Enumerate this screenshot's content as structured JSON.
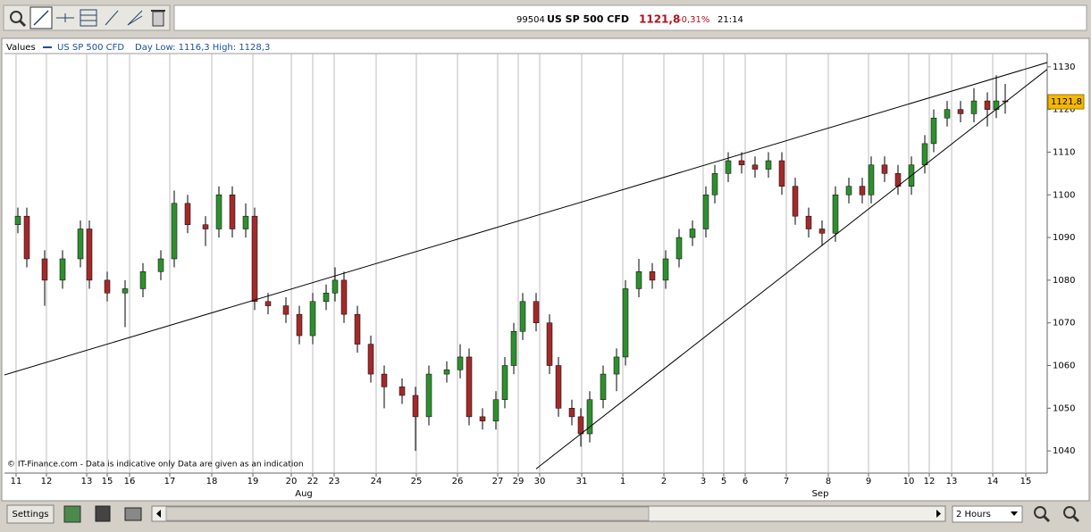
{
  "header": {
    "code": "99504",
    "instrument": "US SP 500 CFD",
    "price": "1121,8",
    "change": "-0,31%",
    "time": "21:14"
  },
  "controls": {
    "settings": "Settings",
    "interval": "2 Hours"
  },
  "chart_data": {
    "type": "candlestick",
    "legend_title": "Values",
    "series_name": "US SP 500 CFD",
    "legend_note": "Day Low: 1116,3 High: 1128,3",
    "footnote": "© IT-Finance.com - Data is indicative only Data are given as an indication",
    "up_color": "#2f8f2f",
    "down_color": "#a32a2a",
    "grid": "x",
    "xlim": [
      0,
      1167
    ],
    "ylim": [
      1034.8,
      1133.1
    ],
    "yticks": [
      1040,
      1050,
      1060,
      1070,
      1080,
      1090,
      1100,
      1110,
      1120,
      1130
    ],
    "xticks": [
      {
        "value": 13,
        "label": "11"
      },
      {
        "value": 47,
        "label": "12"
      },
      {
        "value": 92,
        "label": "13"
      },
      {
        "value": 115,
        "label": "15"
      },
      {
        "value": 140,
        "label": "16"
      },
      {
        "value": 185,
        "label": "17"
      },
      {
        "value": 232,
        "label": "18"
      },
      {
        "value": 278,
        "label": "19"
      },
      {
        "value": 321,
        "label": "20"
      },
      {
        "value": 345,
        "label": "22"
      },
      {
        "value": 369,
        "label": "23"
      },
      {
        "value": 416,
        "label": "24"
      },
      {
        "value": 461,
        "label": "25"
      },
      {
        "value": 507,
        "label": "26"
      },
      {
        "value": 552,
        "label": "27"
      },
      {
        "value": 575,
        "label": "29"
      },
      {
        "value": 599,
        "label": "30"
      },
      {
        "value": 646,
        "label": "31"
      },
      {
        "value": 692,
        "label": "1"
      },
      {
        "value": 738,
        "label": "2"
      },
      {
        "value": 782,
        "label": "3"
      },
      {
        "value": 805,
        "label": "5"
      },
      {
        "value": 829,
        "label": "6"
      },
      {
        "value": 875,
        "label": "7"
      },
      {
        "value": 922,
        "label": "8"
      },
      {
        "value": 967,
        "label": "9"
      },
      {
        "value": 1012,
        "label": "10"
      },
      {
        "value": 1035,
        "label": "12"
      },
      {
        "value": 1060,
        "label": "13"
      },
      {
        "value": 1106,
        "label": "14"
      },
      {
        "value": 1143,
        "label": "15"
      }
    ],
    "month_labels": [
      {
        "value": 335,
        "label": "Aug"
      },
      {
        "value": 913,
        "label": "Sep"
      }
    ],
    "x": [
      15,
      25,
      45,
      65,
      85,
      95,
      115,
      135,
      155,
      175,
      190,
      205,
      225,
      240,
      255,
      270,
      280,
      295,
      315,
      330,
      345,
      360,
      370,
      380,
      395,
      410,
      425,
      445,
      460,
      475,
      495,
      510,
      520,
      535,
      550,
      560,
      570,
      580,
      595,
      610,
      620,
      635,
      645,
      655,
      670,
      685,
      695,
      710,
      725,
      740,
      755,
      770,
      785,
      795,
      810,
      825,
      840,
      855,
      870,
      885,
      900,
      915,
      930,
      945,
      960,
      970,
      985,
      1000,
      1015,
      1030,
      1040,
      1055,
      1070,
      1085,
      1100,
      1110,
      1120
    ],
    "open": [
      1093,
      1095,
      1085,
      1080,
      1085,
      1092,
      1080,
      1077,
      1078,
      1082,
      1085,
      1098,
      1093,
      1092,
      1100,
      1092,
      1095,
      1075,
      1074,
      1072,
      1067,
      1075,
      1077,
      1080,
      1072,
      1065,
      1058,
      1055,
      1053,
      1048,
      1058,
      1059,
      1062,
      1048,
      1047,
      1052,
      1060,
      1068,
      1075,
      1070,
      1060,
      1050,
      1048,
      1044,
      1052,
      1058,
      1062,
      1078,
      1082,
      1080,
      1085,
      1090,
      1092,
      1100,
      1105,
      1108,
      1107,
      1106,
      1108,
      1102,
      1095,
      1092,
      1091,
      1100,
      1102,
      1100,
      1107,
      1105,
      1102,
      1107,
      1112,
      1118,
      1120,
      1119,
      1122,
      1120,
      1122
    ],
    "high": [
      1097,
      1097,
      1087,
      1087,
      1094,
      1094,
      1082,
      1080,
      1084,
      1087,
      1101,
      1100,
      1095,
      1102,
      1102,
      1098,
      1097,
      1077,
      1076,
      1074,
      1077,
      1079,
      1083,
      1082,
      1074,
      1067,
      1060,
      1057,
      1055,
      1060,
      1061,
      1065,
      1064,
      1050,
      1054,
      1062,
      1070,
      1077,
      1077,
      1072,
      1062,
      1052,
      1050,
      1054,
      1060,
      1064,
      1080,
      1085,
      1084,
      1087,
      1092,
      1094,
      1102,
      1107,
      1110,
      1110,
      1109,
      1110,
      1110,
      1104,
      1097,
      1094,
      1102,
      1104,
      1104,
      1109,
      1109,
      1107,
      1109,
      1114,
      1120,
      1122,
      1122,
      1125,
      1124,
      1128,
      1126
    ],
    "low": [
      1091,
      1083,
      1074,
      1078,
      1083,
      1078,
      1075,
      1069,
      1076,
      1080,
      1083,
      1091,
      1088,
      1090,
      1090,
      1090,
      1073,
      1072,
      1070,
      1065,
      1065,
      1073,
      1075,
      1070,
      1063,
      1056,
      1050,
      1051,
      1040,
      1046,
      1056,
      1057,
      1046,
      1045,
      1045,
      1050,
      1058,
      1066,
      1068,
      1058,
      1048,
      1046,
      1041,
      1042,
      1050,
      1054,
      1060,
      1076,
      1078,
      1078,
      1083,
      1088,
      1090,
      1098,
      1103,
      1105,
      1104,
      1104,
      1100,
      1093,
      1090,
      1088,
      1089,
      1098,
      1098,
      1098,
      1103,
      1100,
      1100,
      1105,
      1110,
      1116,
      1117,
      1117,
      1116,
      1118,
      1119
    ],
    "close": [
      1095,
      1085,
      1080,
      1085,
      1092,
      1080,
      1077,
      1078,
      1082,
      1085,
      1098,
      1093,
      1092,
      1100,
      1092,
      1095,
      1075,
      1074,
      1072,
      1067,
      1075,
      1077,
      1080,
      1072,
      1065,
      1058,
      1055,
      1053,
      1048,
      1058,
      1059,
      1062,
      1048,
      1047,
      1052,
      1060,
      1068,
      1075,
      1070,
      1060,
      1050,
      1048,
      1044,
      1052,
      1058,
      1062,
      1078,
      1082,
      1080,
      1085,
      1090,
      1092,
      1100,
      1105,
      1108,
      1107,
      1106,
      1108,
      1102,
      1095,
      1092,
      1091,
      1100,
      1102,
      1100,
      1107,
      1105,
      1102,
      1107,
      1112,
      1118,
      1120,
      1119,
      1122,
      1120,
      1122,
      1121.8
    ],
    "trendlines": [
      {
        "x": [
          0,
          1167
        ],
        "y": [
          1057.8,
          1131.0
        ]
      },
      {
        "x": [
          595,
          1167
        ],
        "y": [
          1035.8,
          1129.4
        ]
      }
    ]
  }
}
